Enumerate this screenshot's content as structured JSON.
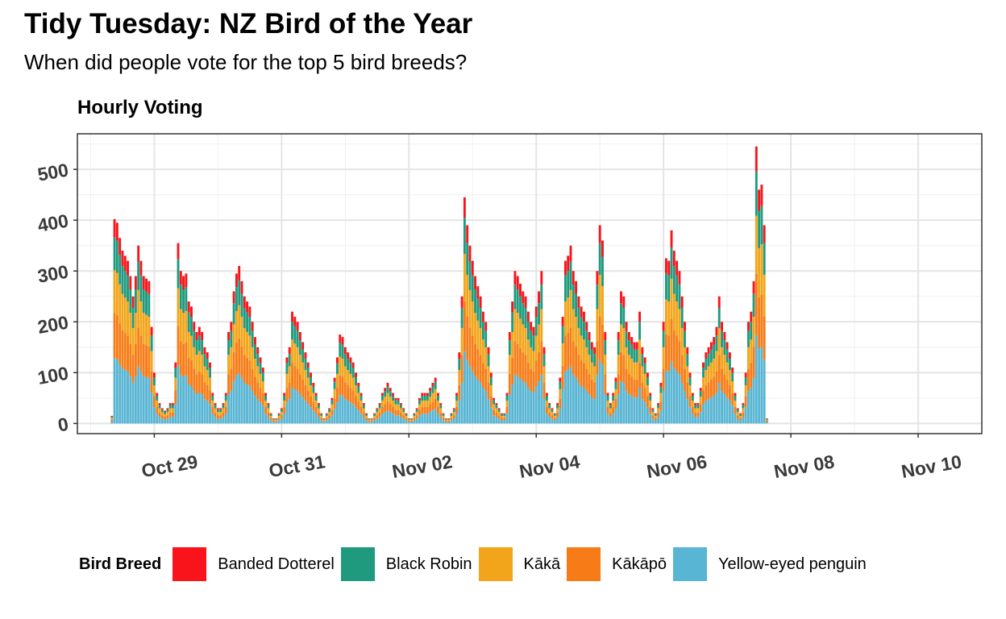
{
  "header": {
    "title": "Tidy Tuesday: NZ Bird of the Year",
    "subtitle": "When did people vote for the top 5 bird breeds?",
    "panel_title": "Hourly Voting"
  },
  "legend": {
    "title": "Bird Breed",
    "items": [
      {
        "label": "Banded Dotterel",
        "color": "#f8141a"
      },
      {
        "label": "Black Robin",
        "color": "#1f9a7e"
      },
      {
        "label": "Kākā",
        "color": "#f2a51a"
      },
      {
        "label": "Kākāpō",
        "color": "#f77c17"
      },
      {
        "label": "Yellow-eyed penguin",
        "color": "#58b5d3"
      }
    ]
  },
  "chart_data": {
    "type": "bar",
    "stacked": true,
    "title": "Hourly Voting",
    "xlabel": "",
    "ylabel": "",
    "x_unit": "hourly timestamps, 2019-10-28 to 2019-11-10",
    "xlim": [
      "2019-10-27T19:00",
      "2019-11-11T00:00"
    ],
    "ylim": [
      -20,
      570
    ],
    "y_ticks": [
      0,
      100,
      200,
      300,
      400,
      500
    ],
    "x_ticks": [
      {
        "date": "2019-10-29",
        "label": "Oct 29"
      },
      {
        "date": "2019-10-31",
        "label": "Oct 31"
      },
      {
        "date": "2019-11-02",
        "label": "Nov 02"
      },
      {
        "date": "2019-11-04",
        "label": "Nov 04"
      },
      {
        "date": "2019-11-06",
        "label": "Nov 06"
      },
      {
        "date": "2019-11-08",
        "label": "Nov 08"
      },
      {
        "date": "2019-11-10",
        "label": "Nov 10"
      }
    ],
    "grid": true,
    "legend_position": "bottom",
    "series_order": [
      "Yellow-eyed penguin",
      "Kākāpō",
      "Kākā",
      "Black Robin",
      "Banded Dotterel"
    ],
    "hourly_totals": {
      "start": "2019-10-28T08:00",
      "values": [
        15,
        402,
        395,
        365,
        340,
        330,
        320,
        290,
        250,
        290,
        350,
        320,
        290,
        285,
        280,
        190,
        100,
        60,
        40,
        30,
        25,
        30,
        40,
        40,
        120,
        355,
        300,
        290,
        295,
        240,
        230,
        200,
        180,
        190,
        180,
        150,
        140,
        120,
        60,
        40,
        30,
        30,
        40,
        60,
        180,
        200,
        260,
        295,
        310,
        280,
        250,
        240,
        230,
        200,
        170,
        150,
        130,
        110,
        60,
        40,
        20,
        10,
        10,
        20,
        30,
        60,
        130,
        150,
        220,
        210,
        200,
        180,
        160,
        140,
        120,
        100,
        80,
        60,
        40,
        20,
        10,
        20,
        30,
        50,
        90,
        130,
        175,
        170,
        150,
        140,
        130,
        120,
        100,
        80,
        60,
        40,
        20,
        10,
        10,
        20,
        30,
        40,
        60,
        70,
        80,
        70,
        60,
        50,
        50,
        40,
        30,
        20,
        10,
        10,
        20,
        30,
        50,
        60,
        60,
        60,
        70,
        80,
        90,
        60,
        40,
        20,
        10,
        10,
        20,
        30,
        60,
        140,
        250,
        445,
        390,
        350,
        320,
        290,
        270,
        250,
        220,
        200,
        150,
        100,
        50,
        40,
        30,
        20,
        20,
        60,
        180,
        240,
        300,
        290,
        275,
        260,
        250,
        220,
        200,
        190,
        230,
        260,
        300,
        150,
        60,
        40,
        30,
        20,
        40,
        90,
        210,
        320,
        330,
        350,
        300,
        280,
        250,
        230,
        220,
        200,
        180,
        160,
        150,
        300,
        390,
        360,
        180,
        60,
        40,
        60,
        90,
        180,
        260,
        250,
        200,
        180,
        170,
        160,
        160,
        220,
        150,
        130,
        100,
        60,
        30,
        20,
        40,
        80,
        200,
        325,
        320,
        380,
        340,
        320,
        300,
        250,
        200,
        150,
        100,
        60,
        40,
        40,
        70,
        120,
        140,
        150,
        160,
        170,
        190,
        250,
        200,
        180,
        160,
        140,
        110,
        60,
        30,
        20,
        40,
        100,
        200,
        220,
        280,
        545,
        460,
        470,
        390,
        10
      ],
      "approx_share": {
        "Yellow-eyed penguin": 0.32,
        "Kākāpō": 0.22,
        "Kākā": 0.21,
        "Black Robin": 0.16,
        "Banded Dotterel": 0.09
      }
    }
  }
}
